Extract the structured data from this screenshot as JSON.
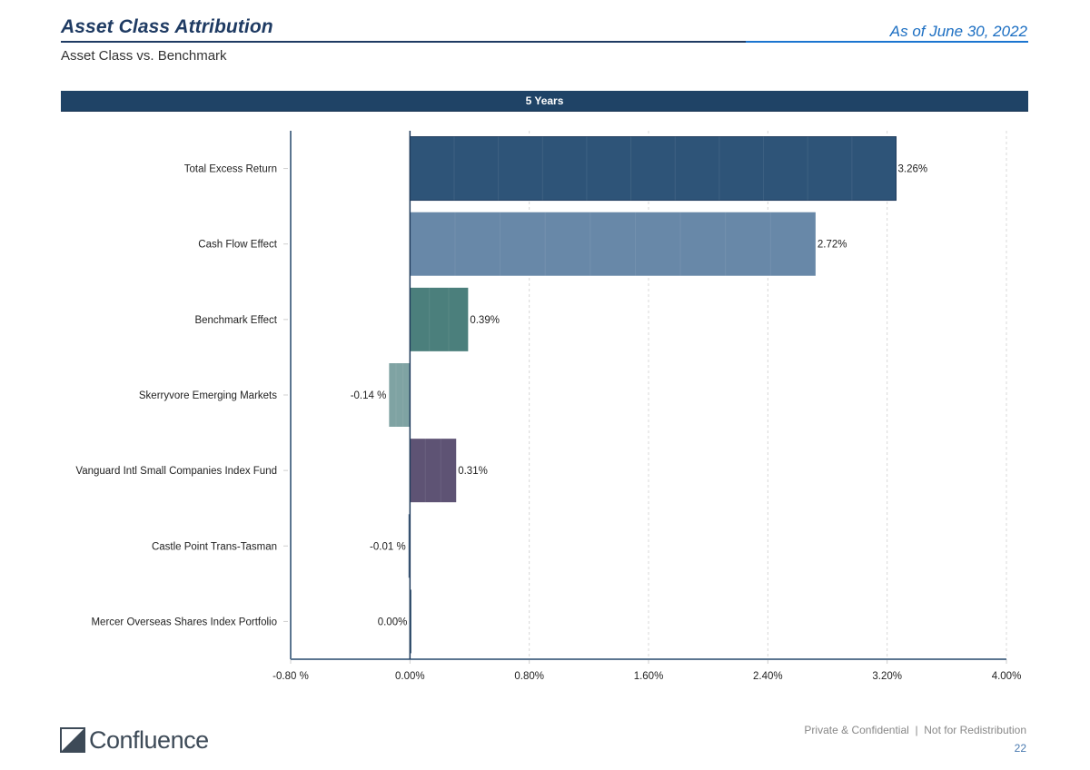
{
  "header": {
    "title": "Asset Class Attribution",
    "as_of": "As of June 30, 2022",
    "subtitle": "Asset Class vs. Benchmark",
    "period_label": "5 Years"
  },
  "footer": {
    "confidential": "Private & Confidential  |  Not for Redistribution",
    "page_number": "22",
    "logo_text": "Confluence"
  },
  "chart_data": {
    "type": "bar",
    "orientation": "horizontal",
    "title": "5 Years",
    "xlabel": "",
    "ylabel": "",
    "xlim": [
      -0.8,
      4.0
    ],
    "x_ticks": [
      -0.8,
      0.0,
      0.8,
      1.6,
      2.4,
      3.2,
      4.0
    ],
    "x_tick_labels": [
      "-0.80 %",
      "0.00%",
      "0.80%",
      "1.60%",
      "2.40%",
      "3.20%",
      "4.00%"
    ],
    "grid": "vertical-dashed",
    "legend": "none",
    "categories": [
      "Total Excess Return",
      "Cash Flow Effect",
      "Benchmark Effect",
      "Skerryvore Emerging Markets",
      "Vanguard Intl Small Companies Index Fund",
      "Castle Point Trans-Tasman",
      "Mercer Overseas Shares Index Portfolio"
    ],
    "values": [
      3.26,
      2.72,
      0.39,
      -0.14,
      0.31,
      -0.01,
      0.0
    ],
    "value_labels": [
      "3.26%",
      "2.72%",
      "0.39%",
      "-0.14 %",
      "0.31%",
      "-0.01 %",
      "0.00%"
    ],
    "colors": [
      "#2e5478",
      "#6888a8",
      "#4b7f7c",
      "#7fa3a3",
      "#5e5374",
      "#5a7590",
      "#2e4f6e"
    ]
  }
}
